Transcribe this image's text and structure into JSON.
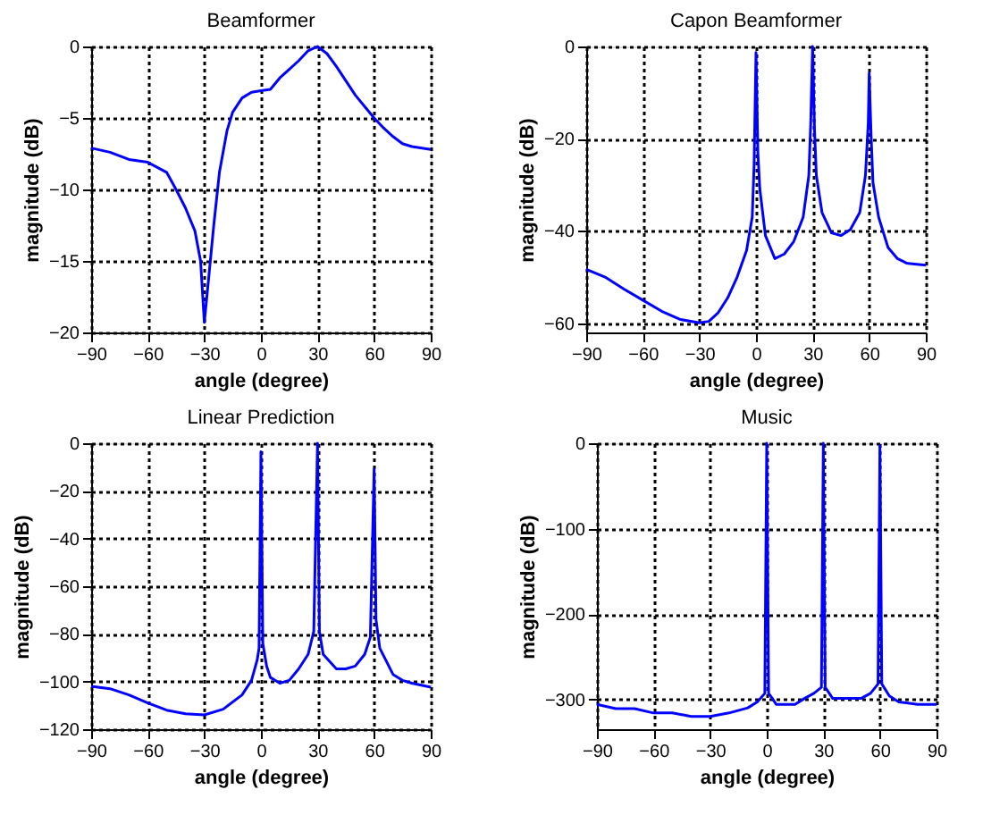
{
  "chart_data": [
    {
      "type": "line",
      "title": "Beamformer",
      "xlabel": "angle (degree)",
      "ylabel": "magnitude (dB)",
      "xlim": [
        -90,
        90
      ],
      "ylim": [
        -20,
        0
      ],
      "xticks": [
        -90,
        -60,
        -30,
        0,
        30,
        60,
        90
      ],
      "yticks": [
        -20,
        -15,
        -10,
        -5,
        0
      ],
      "grid": true,
      "line_style": "solid",
      "marker": "none",
      "x": [
        -90,
        -80,
        -70,
        -60,
        -50,
        -45,
        -40,
        -35,
        -32,
        -30,
        -28,
        -25,
        -22,
        -18,
        -15,
        -10,
        -5,
        0,
        5,
        10,
        15,
        20,
        25,
        30,
        35,
        40,
        45,
        50,
        55,
        60,
        65,
        70,
        75,
        80,
        90
      ],
      "series": [
        {
          "color": "#0000ff",
          "values": [
            -7.1,
            -7.4,
            -7.9,
            -8.1,
            -8.8,
            -10,
            -11.3,
            -12.9,
            -15,
            -19.3,
            -16.6,
            -12.5,
            -8.8,
            -5.9,
            -4.6,
            -3.6,
            -3.2,
            -3.1,
            -3,
            -2.2,
            -1.6,
            -1,
            -0.3,
            0,
            -0.5,
            -1.4,
            -2.4,
            -3.4,
            -4.2,
            -5,
            -5.7,
            -6.3,
            -6.8,
            -7,
            -7.2
          ]
        }
      ]
    },
    {
      "type": "line",
      "title": "Capon Beamformer",
      "xlabel": "angle (degree)",
      "ylabel": "magnitude (dB)",
      "xlim": [
        -90,
        90
      ],
      "ylim": [
        -62,
        0
      ],
      "xticks": [
        -90,
        -60,
        -30,
        0,
        30,
        60,
        90
      ],
      "yticks": [
        -60,
        -40,
        -20,
        0
      ],
      "grid": true,
      "line_style": "solid",
      "marker": "none",
      "x": [
        -90,
        -80,
        -70,
        -60,
        -50,
        -40,
        -30,
        -25,
        -20,
        -15,
        -10,
        -5,
        -2,
        -1,
        0,
        1,
        2,
        5,
        10,
        15,
        20,
        25,
        28,
        29,
        30,
        31,
        32,
        35,
        40,
        45,
        50,
        55,
        58,
        59.5,
        60,
        61,
        62,
        65,
        70,
        75,
        80,
        90
      ],
      "series": [
        {
          "color": "#0000ff",
          "values": [
            -48.3,
            -50,
            -52.6,
            -55,
            -57.4,
            -59.2,
            -59.9,
            -59.6,
            -57.7,
            -54.5,
            -50,
            -44.2,
            -37,
            -25.6,
            -1.3,
            -23,
            -30.8,
            -41,
            -46,
            -45,
            -42.3,
            -37,
            -28,
            -16.7,
            0,
            -18,
            -28,
            -36,
            -40.4,
            -41,
            -39.7,
            -36,
            -28,
            -16.7,
            -5.8,
            -19.2,
            -29.5,
            -37,
            -43.6,
            -46,
            -47,
            -47.4
          ]
        }
      ]
    },
    {
      "type": "line",
      "title": "Linear Prediction",
      "xlabel": "angle (degree)",
      "ylabel": "magnitude (dB)",
      "xlim": [
        -90,
        90
      ],
      "ylim": [
        -120,
        0
      ],
      "xticks": [
        -90,
        -60,
        -30,
        0,
        30,
        60,
        90
      ],
      "yticks": [
        -120,
        -100,
        -80,
        -60,
        -40,
        -20,
        0
      ],
      "grid": true,
      "line_style": "solid",
      "marker": "none",
      "x": [
        -90,
        -80,
        -70,
        -60,
        -50,
        -40,
        -30,
        -20,
        -10,
        -5,
        -2,
        -1,
        0,
        1,
        3,
        5,
        10,
        15,
        20,
        25,
        28,
        30,
        31,
        33,
        40,
        45,
        50,
        55,
        58,
        60,
        61,
        63,
        70,
        75,
        80,
        90
      ],
      "series": [
        {
          "color": "#0000ff",
          "values": [
            -102,
            -103,
            -105.6,
            -109,
            -112,
            -113.5,
            -114,
            -111.6,
            -105.6,
            -99.5,
            -91,
            -86,
            -3.6,
            -84,
            -93.5,
            -98.3,
            -100.7,
            -99.5,
            -94.7,
            -88.6,
            -79,
            0,
            -79,
            -88.6,
            -94.7,
            -94.7,
            -93.5,
            -88.6,
            -81.4,
            -10.9,
            -74,
            -86,
            -97,
            -99.5,
            -100.7,
            -102.4
          ]
        }
      ]
    },
    {
      "type": "line",
      "title": "Music",
      "xlabel": "angle (degree)",
      "ylabel": "magnitude (dB)",
      "xlim": [
        -90,
        90
      ],
      "ylim": [
        -335,
        0
      ],
      "xticks": [
        -90,
        -60,
        -30,
        0,
        30,
        60,
        90
      ],
      "yticks": [
        -300,
        -200,
        -100,
        0
      ],
      "grid": true,
      "line_style": "solid",
      "marker": "none",
      "x": [
        -90,
        -80,
        -70,
        -60,
        -50,
        -40,
        -30,
        -20,
        -10,
        -5,
        -1,
        0,
        1,
        3,
        5,
        10,
        15,
        20,
        25,
        29,
        30,
        31,
        35,
        40,
        50,
        55,
        59,
        60,
        61,
        65,
        70,
        80,
        90
      ],
      "series": [
        {
          "color": "#0000ff",
          "values": [
            -306,
            -311,
            -311,
            -316,
            -316,
            -320,
            -320,
            -316,
            -310,
            -303,
            -293,
            0,
            -293,
            -299,
            -306,
            -306,
            -306,
            -299,
            -293,
            -286,
            0,
            -286,
            -299,
            -299,
            -299,
            -293,
            -282,
            -3,
            -282,
            -296,
            -303,
            -306,
            -306
          ]
        }
      ]
    }
  ]
}
